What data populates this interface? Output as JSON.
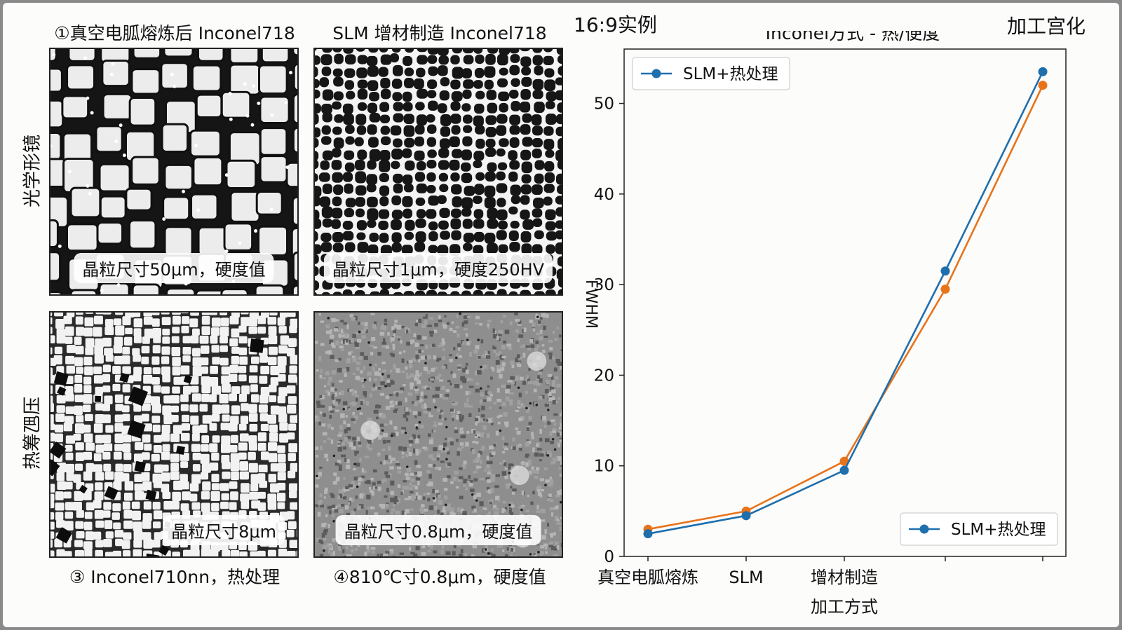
{
  "corner_left": "16:9实例",
  "corner_right": "加工宫化",
  "panels": [
    {
      "caption": "①真空电胍熔炼后 Inconel718",
      "overlay": "晶粒尺寸50μm，硬度值"
    },
    {
      "caption": "SLM 增材制造 Inconel718",
      "overlay": "晶粒尺寸1μm，硬度250HV"
    },
    {
      "caption": "③ Inconel710nn，热处理",
      "overlay": "晶粒尺寸8μm"
    },
    {
      "caption": "④810℃寸0.8μm，硬度值",
      "overlay": "晶粒尺寸0.8μm，硬度值"
    }
  ],
  "row_labels": [
    "光学形镜",
    "热筹乪压"
  ],
  "chart_data": {
    "type": "line",
    "title": "Inconel方式 - 热/便度",
    "xlabel": "加工方式",
    "ylabel": "FWHM",
    "categories": [
      "真空电胍熔炼",
      "SLM",
      "增材制造",
      "",
      ""
    ],
    "ylim": [
      0,
      56
    ],
    "yticks": [
      0,
      10,
      20,
      30,
      40,
      50
    ],
    "grid": false,
    "series": [
      {
        "name": "SLM+热处理",
        "color": "#1f6fad",
        "values": [
          2.5,
          4.5,
          9.5,
          31.5,
          53.5
        ]
      },
      {
        "name": "",
        "color": "#e8731a",
        "values": [
          3.0,
          5.0,
          10.5,
          29.5,
          52.0
        ]
      }
    ],
    "legends": [
      {
        "placement": "top-left",
        "label": "SLM+热处理"
      },
      {
        "placement": "bottom-right",
        "label": "SLM+热处理"
      }
    ]
  }
}
